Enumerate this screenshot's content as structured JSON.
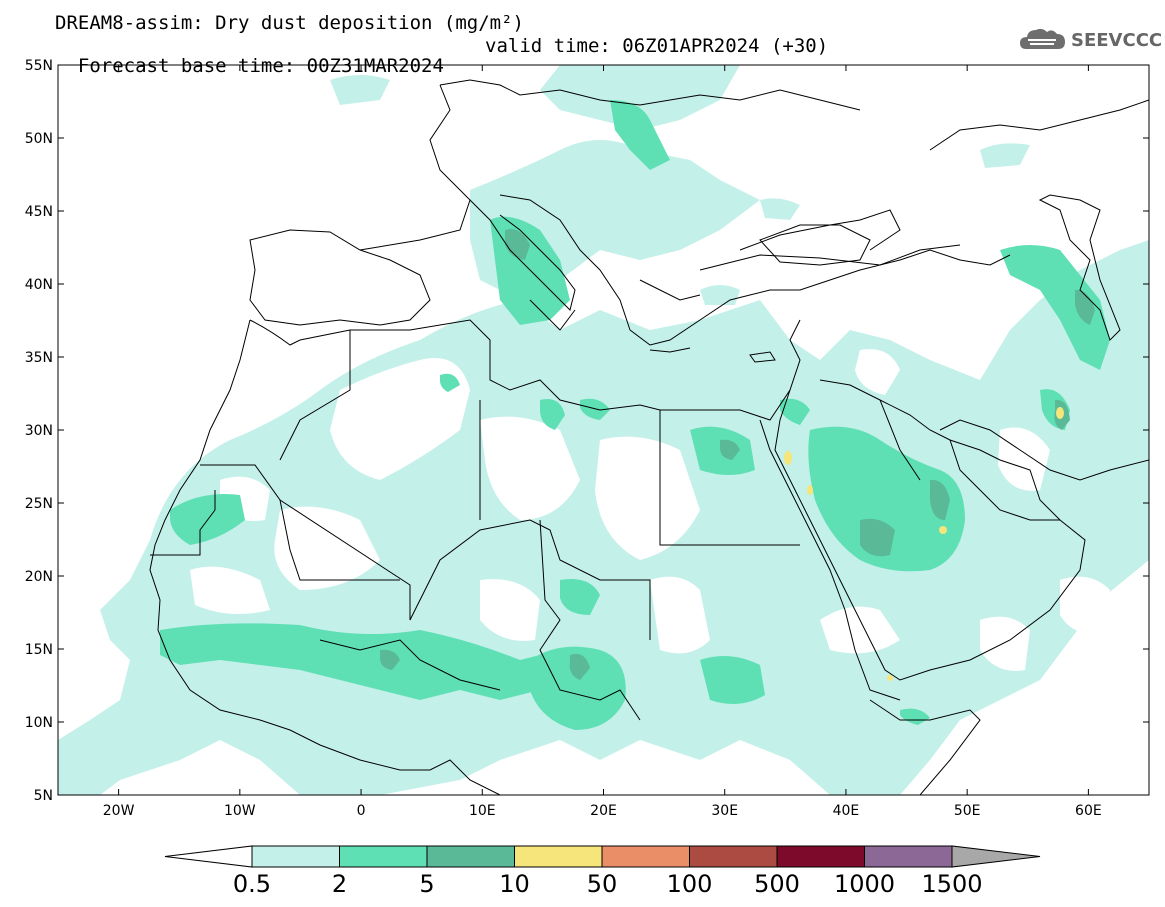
{
  "header": {
    "title_line1": "DREAM8-assim: Dry dust deposition (mg/m²)",
    "title_line2_base": "Forecast base time: 00Z31MAR2024",
    "title_line2_valid": "valid time: 06Z01APR2024 (+30)",
    "logo_text": "SEEVCCC",
    "logo_icon": "cloud-icon"
  },
  "map": {
    "region": "North Africa, Middle East and Europe",
    "lon_range": [
      -25,
      65
    ],
    "lat_range": [
      5,
      55
    ],
    "lat_ticks": [
      "55N",
      "50N",
      "45N",
      "40N",
      "35N",
      "30N",
      "25N",
      "20N",
      "15N",
      "10N",
      "5N"
    ],
    "lon_ticks": [
      "20W",
      "10W",
      "0",
      "10E",
      "20E",
      "30E",
      "40E",
      "50E",
      "60E"
    ]
  },
  "colorbar": {
    "labels": [
      "0.5",
      "2",
      "5",
      "10",
      "50",
      "100",
      "500",
      "1000",
      "1500"
    ],
    "colors": [
      "#c4f0ea",
      "#5ee0b4",
      "#5aba98",
      "#f5e57a",
      "#ea8e68",
      "#ab4b42",
      "#7d0a2a",
      "#8b6896",
      "#a8a8a8"
    ]
  }
}
